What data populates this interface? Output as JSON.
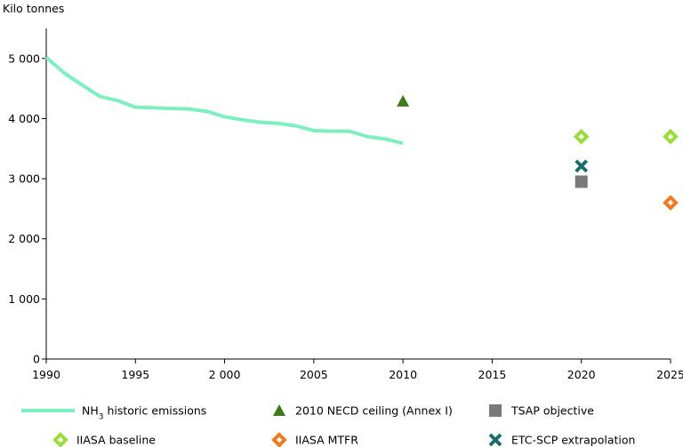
{
  "chart_data": {
    "type": "line",
    "title": "",
    "xlabel": "",
    "ylabel": "Kilo tonnes",
    "xlim": [
      1990,
      2025
    ],
    "ylim": [
      0,
      5500
    ],
    "x_ticks": [
      1990,
      1995,
      2000,
      2005,
      2010,
      2015,
      2020,
      2025
    ],
    "x_tick_labels": [
      "1990",
      "1995",
      "2 000",
      "2005",
      "2010",
      "2015",
      "2020",
      "2025"
    ],
    "y_ticks": [
      0,
      1000,
      2000,
      3000,
      4000,
      5000
    ],
    "y_tick_labels": [
      "0",
      "1 000",
      "2 000",
      "3 000",
      "4 000",
      "5 000"
    ],
    "grid": false,
    "legend_placement": "bottom",
    "series": [
      {
        "name": "NH3 historic emissions",
        "name_main": "NH",
        "name_sub": "3",
        "name_rest": " historic emissions",
        "kind": "line",
        "color": "#7ef0bf",
        "x": [
          1990,
          1991,
          1992,
          1993,
          1994,
          1995,
          1996,
          1997,
          1998,
          1999,
          2000,
          2001,
          2002,
          2003,
          2004,
          2005,
          2006,
          2007,
          2008,
          2009,
          2010
        ],
        "y": [
          5020,
          4760,
          4560,
          4370,
          4300,
          4190,
          4180,
          4170,
          4160,
          4120,
          4030,
          3980,
          3940,
          3920,
          3880,
          3800,
          3790,
          3790,
          3700,
          3660,
          3590
        ]
      },
      {
        "name": "2010 NECD ceiling (Annex I)",
        "kind": "marker",
        "marker": "triangle",
        "color": "#3d7a1a",
        "x": [
          2010
        ],
        "y": [
          4290
        ]
      },
      {
        "name": "TSAP objective",
        "kind": "marker",
        "marker": "square",
        "color": "#7a7a7a",
        "x": [
          2020
        ],
        "y": [
          2950
        ]
      },
      {
        "name": "IIASA baseline",
        "kind": "marker",
        "marker": "diamond",
        "color": "#9ade3a",
        "x": [
          2020,
          2025
        ],
        "y": [
          3700,
          3700
        ]
      },
      {
        "name": "IIASA MTFR",
        "kind": "marker",
        "marker": "diamond",
        "color": "#f27a1e",
        "x": [
          2025
        ],
        "y": [
          2600
        ]
      },
      {
        "name": "ETC-SCP extrapolation",
        "kind": "marker",
        "marker": "cross",
        "color": "#1c6b6b",
        "x": [
          2020
        ],
        "y": [
          3210
        ]
      }
    ]
  }
}
